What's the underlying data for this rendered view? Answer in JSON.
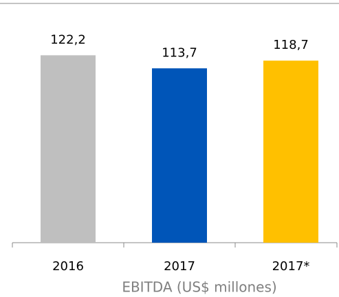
{
  "chart_data": {
    "type": "bar",
    "x_label": "EBITDA (US$ millones)",
    "categories": [
      "2016",
      "2017",
      "2017*"
    ],
    "values": [
      122.2,
      113.7,
      118.7
    ],
    "value_labels": [
      "122,2",
      "113,7",
      "118,7"
    ],
    "colors": [
      "#bfbfbf",
      "#0055b8",
      "#ffc000"
    ],
    "ylim": [
      0,
      156
    ]
  }
}
